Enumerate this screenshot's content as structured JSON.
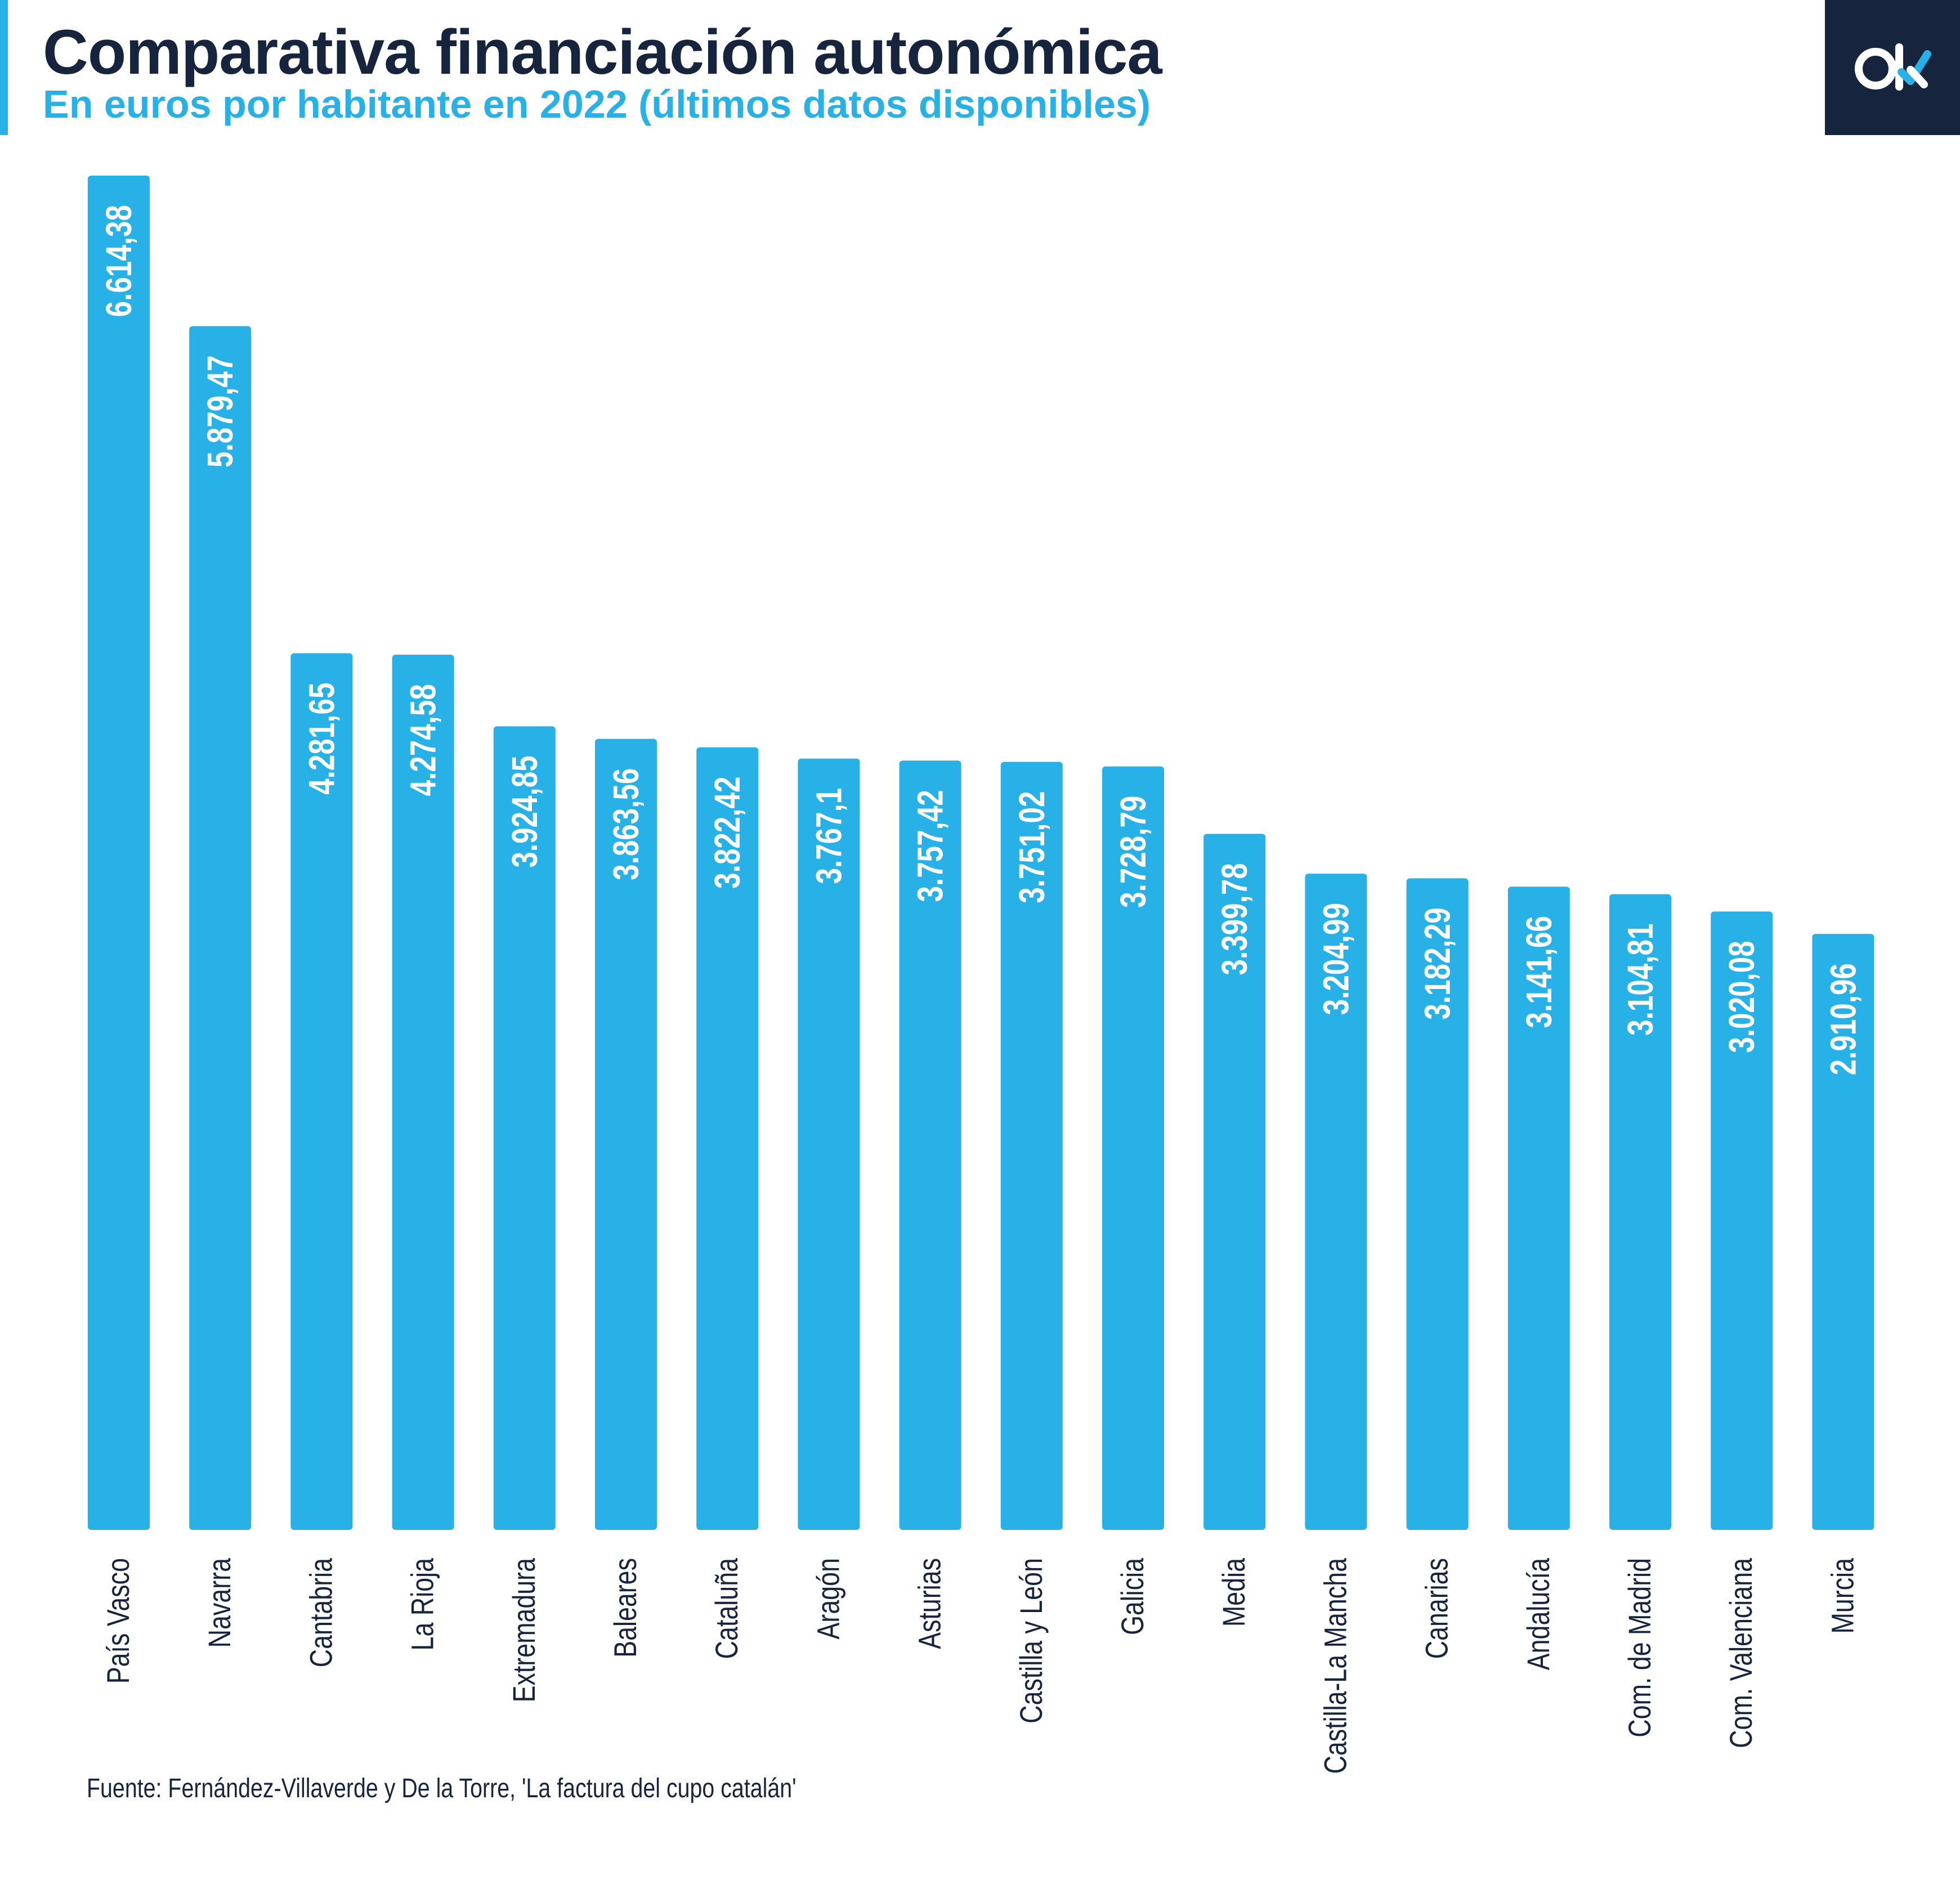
{
  "header": {
    "title": "Comparativa financiación autonómica",
    "subtitle": "En euros por habitante en 2022 (últimos datos disponibles)"
  },
  "logo": {
    "text": "ok",
    "icon": "ok-diario-logo"
  },
  "source": "Fuente: Fernández-Villaverde y De la Torre, 'La factura del cupo catalán'",
  "colors": {
    "bar": "#27b1e6",
    "title": "#16243d",
    "subtitle": "#27b1e6",
    "logo_bg": "#16243d",
    "label_text": "#ffffff"
  },
  "chart_data": {
    "type": "bar",
    "orientation": "vertical",
    "categories": [
      "País Vasco",
      "Navarra",
      "Cantabria",
      "La Rioja",
      "Extremadura",
      "Baleares",
      "Cataluña",
      "Aragón",
      "Asturias",
      "Castilla y León",
      "Galicia",
      "Media",
      "Castilla-La Mancha",
      "Canarias",
      "Andalucía",
      "Com. de Madrid",
      "Com. Valenciana",
      "Murcia"
    ],
    "values": [
      6614.38,
      5879.47,
      4281.65,
      4274.58,
      3924.85,
      3863.56,
      3822.42,
      3767.1,
      3757.42,
      3751.02,
      3728.79,
      3399.78,
      3204.99,
      3182.29,
      3141.66,
      3104.81,
      3020.08,
      2910.96
    ],
    "value_labels": [
      "6.614,38",
      "5.879,47",
      "4.281,65",
      "4.274,58",
      "3.924,85",
      "3.863,56",
      "3.822,42",
      "3.767,1",
      "3.757,42",
      "3.751,02",
      "3.728,79",
      "3.399,78",
      "3.204,99",
      "3.182,29",
      "3.141,66",
      "3.104,81",
      "3.020,08",
      "2.910,96"
    ],
    "ylim": [
      0,
      6614.38
    ],
    "axis_visible": false,
    "grid": false,
    "legend": "none",
    "data_labels": "inside-top-rotated",
    "category_labels": "rotated-vertical"
  }
}
